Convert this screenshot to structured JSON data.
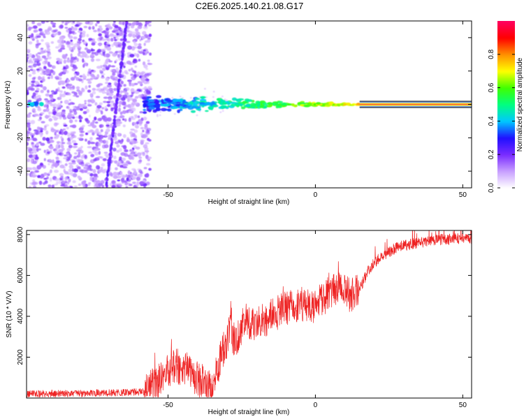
{
  "figure": {
    "title": "C2E6.2025.140.21.08.G17"
  },
  "chart_data": [
    {
      "type": "heatmap",
      "name": "spectrogram",
      "xlabel": "Height of straight line (km)",
      "ylabel": "Frequency (Hz)",
      "xlim": [
        -98,
        53
      ],
      "ylim": [
        -50,
        50
      ],
      "x_ticks": [
        -50,
        0,
        50
      ],
      "y_ticks": [
        -40,
        -20,
        0,
        20,
        40
      ],
      "colorbar": {
        "label": "Normalized spectral amplitude",
        "range": [
          0,
          1
        ],
        "ticks": [
          "0.0",
          "0.2",
          "0.4",
          "0.6",
          "0.8"
        ],
        "colormap": [
          "#ffffff",
          "#c8a0ff",
          "#7a2cff",
          "#2010ff",
          "#00c8ff",
          "#00ff80",
          "#40ff00",
          "#ffff00",
          "#ff9000",
          "#ff0000",
          "#ff0060"
        ]
      },
      "features": [
        {
          "description_key": "noise",
          "x_range": [
            -98,
            -56
          ],
          "y_range": [
            -50,
            50
          ],
          "amplitude": 0.12
        },
        {
          "description_key": "diagonal streak",
          "x_start": -71,
          "x_end": -64,
          "y_start": -50,
          "y_end": 50,
          "amplitude": 0.18
        },
        {
          "description_key": "carrier line",
          "x_range": [
            -58,
            53
          ],
          "y_center": 0,
          "amplitude_start": 0.3,
          "amplitude_end": 0.95
        }
      ]
    },
    {
      "type": "line",
      "name": "snr",
      "xlabel": "Height of straight line (km)",
      "ylabel": "SNR (10 * V/V)",
      "xlim": [
        -98,
        53
      ],
      "ylim": [
        0,
        8200
      ],
      "x_ticks": [
        -50,
        0,
        50
      ],
      "y_ticks": [
        2000,
        4000,
        6000,
        8000
      ],
      "color": "#ee2222",
      "envelope": {
        "x": [
          -98,
          -70,
          -58,
          -52,
          -48,
          -44,
          -40,
          -35,
          -32,
          -29,
          -27,
          -24,
          -20,
          -15,
          -10,
          -5,
          0,
          5,
          8,
          12,
          15,
          18,
          22,
          28,
          35,
          42,
          50,
          53
        ],
        "y": [
          200,
          250,
          300,
          900,
          1600,
          1400,
          900,
          500,
          2000,
          3300,
          2700,
          3800,
          3600,
          4000,
          4400,
          4600,
          4400,
          5200,
          5500,
          5000,
          5300,
          6300,
          6900,
          7400,
          7600,
          7750,
          7800,
          7800
        ]
      }
    }
  ]
}
